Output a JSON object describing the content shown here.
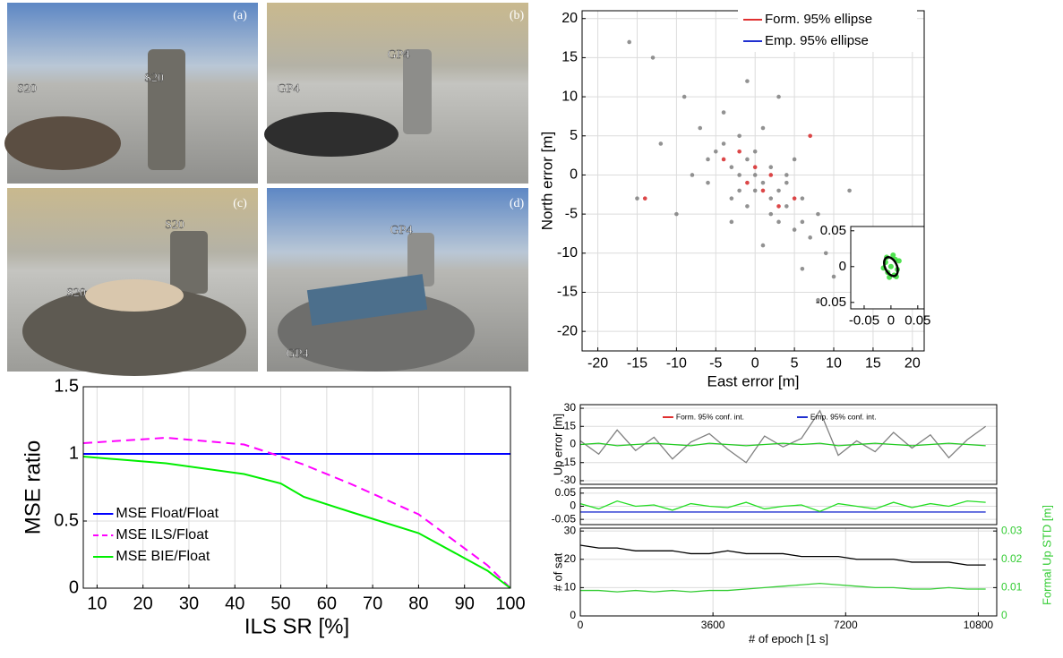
{
  "photos": [
    {
      "label": "(a)",
      "tags": [
        "S20",
        "S20"
      ]
    },
    {
      "label": "(b)",
      "tags": [
        "GP4",
        "GP4"
      ]
    },
    {
      "label": "(c)",
      "tags": [
        "S20",
        "S20"
      ]
    },
    {
      "label": "(d)",
      "tags": [
        "GP4",
        "GP4"
      ]
    }
  ],
  "chart_data": [
    {
      "type": "scatter",
      "xlabel": "East error [m]",
      "ylabel": "North error [m]",
      "xlim": [
        -22,
        21.5
      ],
      "ylim": [
        -22.5,
        21
      ],
      "xticks": [
        -20,
        -15,
        -10,
        -5,
        0,
        5,
        10,
        15,
        20
      ],
      "yticks": [
        -20,
        -15,
        -10,
        -5,
        0,
        5,
        10,
        15,
        20
      ],
      "grid": true,
      "series": [
        {
          "color": "#7f7f7f",
          "x": [
            -16,
            -13,
            -9,
            -12,
            -7,
            -5,
            -4,
            -3,
            -2,
            -2,
            -1,
            -1,
            0,
            0,
            1,
            1,
            2,
            2,
            3,
            3,
            4,
            4,
            5,
            5,
            6,
            7,
            8,
            9,
            10,
            -6,
            -8,
            -3,
            1,
            6,
            -10,
            12,
            -15,
            3,
            -1,
            8,
            -4,
            2,
            -6,
            0,
            4,
            -2,
            6,
            -3
          ],
          "values": [
            17,
            15,
            10,
            4,
            6,
            3,
            8,
            1,
            5,
            -2,
            2,
            -4,
            0,
            3,
            -1,
            6,
            -3,
            1,
            -2,
            -6,
            0,
            -4,
            -7,
            2,
            -3,
            -8,
            -5,
            -10,
            -13,
            -1,
            0,
            -6,
            -9,
            -12,
            -5,
            -2,
            -3,
            10,
            12,
            -16,
            4,
            -5,
            2,
            -2,
            -1,
            0,
            -6,
            -3
          ]
        },
        {
          "color": "#d62728",
          "x": [
            -2,
            1,
            3,
            -4,
            0,
            5,
            -14,
            7,
            -1,
            2
          ],
          "values": [
            3,
            -2,
            -4,
            2,
            1,
            -3,
            -3,
            5,
            -1,
            0
          ]
        }
      ],
      "legend": [
        {
          "name": "Form. 95% ellipse",
          "color": "#e03030"
        },
        {
          "name": "Emp. 95% ellipse",
          "color": "#2030d0"
        }
      ]
    },
    {
      "type": "scatter",
      "xlim": [
        -0.075,
        0.062
      ],
      "ylim": [
        -0.059,
        0.056
      ],
      "xticks": [
        -0.05,
        0,
        0.05
      ],
      "yticks": [
        -0.05,
        0,
        0.05
      ],
      "grid": false,
      "series": [
        {
          "color": "#33dd33",
          "x": [
            0,
            0.008,
            -0.006,
            0.012,
            -0.01,
            0.004,
            -0.003,
            0.015,
            -0.014,
            0.006,
            0.01,
            -0.008
          ],
          "values": [
            0,
            0.01,
            -0.008,
            -0.004,
            0.006,
            0.016,
            -0.015,
            0.008,
            -0.002,
            -0.012,
            -0.014,
            0.013
          ]
        }
      ],
      "ellipse": {
        "color": "#000000",
        "center": [
          0,
          0
        ],
        "radii": [
          0.011,
          0.014
        ]
      }
    },
    {
      "type": "line",
      "xlabel": "ILS SR [%]",
      "ylabel": "MSE ratio",
      "xlim": [
        7,
        100
      ],
      "ylim": [
        0,
        1.5
      ],
      "xticks": [
        10,
        20,
        30,
        40,
        50,
        60,
        70,
        80,
        90,
        100
      ],
      "yticks": [
        0,
        0.5,
        1,
        1.5
      ],
      "grid": true,
      "x": [
        7,
        25,
        42,
        50,
        55,
        65,
        80,
        95,
        100
      ],
      "series": [
        {
          "name": "MSE Float/Float",
          "color": "#0000ff",
          "dash": false,
          "values": [
            1,
            1,
            1,
            1,
            1,
            1,
            1,
            1,
            1
          ]
        },
        {
          "name": "MSE ILS/Float",
          "color": "#ff00ff",
          "dash": true,
          "values": [
            1.08,
            1.12,
            1.07,
            0.98,
            0.92,
            0.78,
            0.55,
            0.17,
            0
          ]
        },
        {
          "name": "MSE BIE/Float",
          "color": "#00ee00",
          "dash": false,
          "values": [
            0.98,
            0.93,
            0.85,
            0.78,
            0.68,
            0.57,
            0.41,
            0.13,
            0
          ]
        }
      ]
    },
    {
      "type": "line",
      "ylabel": "Up error [m]",
      "xlim": [
        0,
        11300
      ],
      "ylim": [
        -33,
        33
      ],
      "yticks": [
        -30,
        -15,
        0,
        15,
        30
      ],
      "grid": true,
      "x": [
        0,
        500,
        1000,
        1500,
        2000,
        2500,
        3000,
        3500,
        4000,
        4500,
        5000,
        5500,
        6000,
        6500,
        7000,
        7500,
        8000,
        8500,
        9000,
        9500,
        10000,
        10500,
        11000
      ],
      "series": [
        {
          "color": "#808080",
          "dash": false,
          "values": [
            3,
            -8,
            12,
            -5,
            6,
            -12,
            2,
            9,
            -4,
            -15,
            7,
            -2,
            5,
            28,
            -9,
            3,
            -6,
            10,
            -3,
            8,
            -11,
            4,
            15
          ]
        },
        {
          "color": "#22cc22",
          "dash": false,
          "values": [
            0,
            1,
            -1,
            0,
            1,
            0,
            -1,
            1,
            0,
            -1,
            0,
            1,
            0,
            1,
            -1,
            0,
            1,
            0,
            -1,
            0,
            1,
            0,
            -1
          ]
        }
      ],
      "legend": [
        {
          "name": "Form. 95% conf. int.",
          "color": "#e03030"
        },
        {
          "name": "Emp. 95% conf. int.",
          "color": "#2030d0"
        }
      ]
    },
    {
      "type": "line",
      "xlim": [
        0,
        11300
      ],
      "ylim": [
        -0.07,
        0.07
      ],
      "yticks": [
        -0.05,
        0,
        0.05
      ],
      "grid": true,
      "x": [
        0,
        500,
        1000,
        1500,
        2000,
        2500,
        3000,
        3500,
        4000,
        4500,
        5000,
        5500,
        6000,
        6500,
        7000,
        7500,
        8000,
        8500,
        9000,
        9500,
        10000,
        10500,
        11000
      ],
      "series": [
        {
          "color": "#2030d0",
          "dash": false,
          "values": [
            -0.022,
            -0.022,
            -0.022,
            -0.022,
            -0.022,
            -0.022,
            -0.022,
            -0.022,
            -0.022,
            -0.022,
            -0.022,
            -0.022,
            -0.022,
            -0.022,
            -0.022,
            -0.022,
            -0.022,
            -0.022,
            -0.022,
            -0.022,
            -0.022,
            -0.022,
            -0.022
          ]
        },
        {
          "color": "#22dd22",
          "dash": false,
          "values": [
            0.01,
            -0.01,
            0.02,
            0,
            0.005,
            -0.015,
            0.01,
            0,
            -0.005,
            0.015,
            -0.01,
            0,
            0.005,
            -0.02,
            0.01,
            0,
            -0.01,
            0.015,
            -0.005,
            0.01,
            0,
            0.02,
            0.015
          ]
        }
      ]
    },
    {
      "type": "line",
      "xlabel": "# of epoch [1 s]",
      "ylabel": "# of sat",
      "y2label": "Formal Up STD [m]",
      "y2color": "#33cc33",
      "xlim": [
        0,
        11300
      ],
      "ylim": [
        0,
        31
      ],
      "y2lim": [
        0,
        0.031
      ],
      "xticks": [
        0,
        3600,
        7200,
        10800
      ],
      "yticks": [
        0,
        10,
        20,
        30
      ],
      "y2ticks": [
        0,
        0.01,
        0.02,
        0.03
      ],
      "grid": true,
      "x": [
        0,
        500,
        1000,
        1500,
        2000,
        2500,
        3000,
        3500,
        4000,
        4500,
        5000,
        5500,
        6000,
        6500,
        7000,
        7500,
        8000,
        8500,
        9000,
        9500,
        10000,
        10500,
        11000
      ],
      "series": [
        {
          "color": "#000000",
          "dash": false,
          "values": [
            25,
            24,
            24,
            23,
            23,
            23,
            22,
            22,
            23,
            22,
            22,
            22,
            21,
            21,
            21,
            20,
            20,
            20,
            19,
            19,
            19,
            18,
            18
          ]
        },
        {
          "color": "#33cc33",
          "dash": false,
          "axis": "y2",
          "values": [
            0.009,
            0.009,
            0.0085,
            0.009,
            0.0085,
            0.009,
            0.0085,
            0.009,
            0.009,
            0.0095,
            0.01,
            0.0105,
            0.011,
            0.0115,
            0.011,
            0.0105,
            0.01,
            0.01,
            0.0095,
            0.0095,
            0.01,
            0.0095,
            0.0095
          ]
        }
      ]
    }
  ]
}
